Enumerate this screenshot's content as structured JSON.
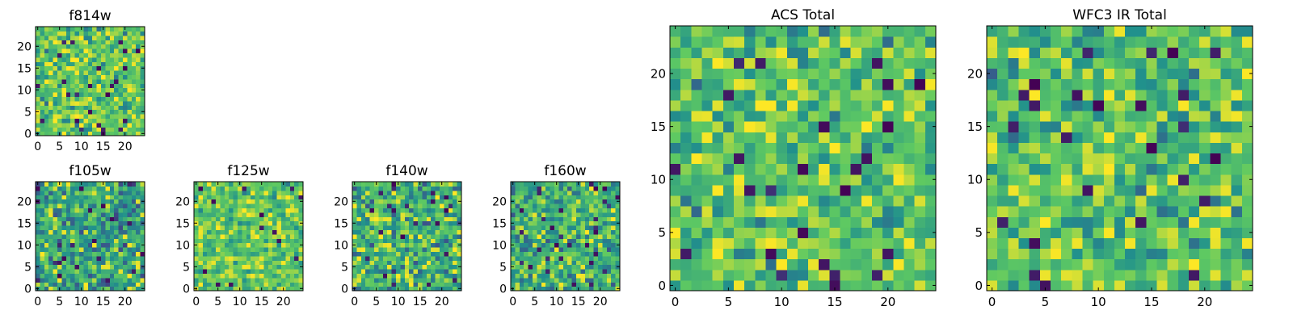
{
  "figure": {
    "background": "#ffffff",
    "colormap": "viridis",
    "colormap_stops": [
      "#440154",
      "#3b528b",
      "#21918c",
      "#5ec962",
      "#fde725"
    ]
  },
  "chart_data": [
    {
      "type": "heatmap",
      "title": "f814w",
      "grid_size": [
        25,
        25
      ],
      "xlim": [
        -0.5,
        24.5
      ],
      "ylim": [
        -0.5,
        24.5
      ],
      "xticks": [
        0,
        5,
        10,
        15,
        20
      ],
      "yticks": [
        0,
        5,
        10,
        15,
        20
      ],
      "pattern": "fine pixel noise, mostly green-yellow with scattered dark pixels",
      "value_range": [
        0,
        1
      ],
      "mean": 0.72,
      "noise": 0.2,
      "seed": 11
    },
    {
      "type": "heatmap",
      "title": "f105w",
      "grid_size": [
        25,
        25
      ],
      "xlim": [
        -0.5,
        24.5
      ],
      "ylim": [
        -0.5,
        24.5
      ],
      "xticks": [
        0,
        5,
        10,
        15,
        20
      ],
      "yticks": [
        0,
        5,
        10,
        15,
        20
      ],
      "pattern": "smoothed noise, teal-green with yellow patch at left edge",
      "value_range": [
        0,
        1
      ],
      "mean": 0.58,
      "noise": 0.22,
      "seed": 23
    },
    {
      "type": "heatmap",
      "title": "f125w",
      "grid_size": [
        25,
        25
      ],
      "xlim": [
        -0.5,
        24.5
      ],
      "ylim": [
        -0.5,
        24.5
      ],
      "xticks": [
        0,
        5,
        10,
        15,
        20
      ],
      "yticks": [
        0,
        5,
        10,
        15,
        20
      ],
      "pattern": "smoothed noise, mostly yellow-green with few dark pixels",
      "value_range": [
        0,
        1
      ],
      "mean": 0.74,
      "noise": 0.18,
      "seed": 37
    },
    {
      "type": "heatmap",
      "title": "f140w",
      "grid_size": [
        25,
        25
      ],
      "xlim": [
        -0.5,
        24.5
      ],
      "ylim": [
        -0.5,
        24.5
      ],
      "xticks": [
        0,
        5,
        10,
        15,
        20
      ],
      "yticks": [
        0,
        5,
        10,
        15,
        20
      ],
      "pattern": "smoothed noise, green-yellow with dark blobs",
      "value_range": [
        0,
        1
      ],
      "mean": 0.65,
      "noise": 0.24,
      "seed": 53
    },
    {
      "type": "heatmap",
      "title": "f160w",
      "grid_size": [
        25,
        25
      ],
      "xlim": [
        -0.5,
        24.5
      ],
      "ylim": [
        -0.5,
        24.5
      ],
      "xticks": [
        0,
        5,
        10,
        15,
        20
      ],
      "yticks": [
        0,
        5,
        10,
        15,
        20
      ],
      "pattern": "smoothed noise, green-yellow with blue patches",
      "value_range": [
        0,
        1
      ],
      "mean": 0.64,
      "noise": 0.23,
      "seed": 71
    },
    {
      "type": "heatmap",
      "title": "ACS Total",
      "grid_size": [
        25,
        25
      ],
      "xlim": [
        -0.5,
        24.5
      ],
      "ylim": [
        -0.5,
        24.5
      ],
      "xticks": [
        0,
        5,
        10,
        15,
        20
      ],
      "yticks": [
        0,
        5,
        10,
        15,
        20
      ],
      "pattern": "pixel noise, green-yellow with scattered dark purple pixels",
      "value_range": [
        0,
        1
      ],
      "mean": 0.7,
      "noise": 0.2,
      "seed": 11
    },
    {
      "type": "heatmap",
      "title": "WFC3 IR Total",
      "grid_size": [
        25,
        25
      ],
      "xlim": [
        -0.5,
        24.5
      ],
      "ylim": [
        -0.5,
        24.5
      ],
      "xticks": [
        0,
        5,
        10,
        15,
        20
      ],
      "yticks": [
        0,
        5,
        10,
        15,
        20
      ],
      "pattern": "pixel noise, green-yellow with yellow clump near center-left and scattered dark pixels",
      "value_range": [
        0,
        1
      ],
      "mean": 0.68,
      "noise": 0.2,
      "seed": 97
    }
  ]
}
